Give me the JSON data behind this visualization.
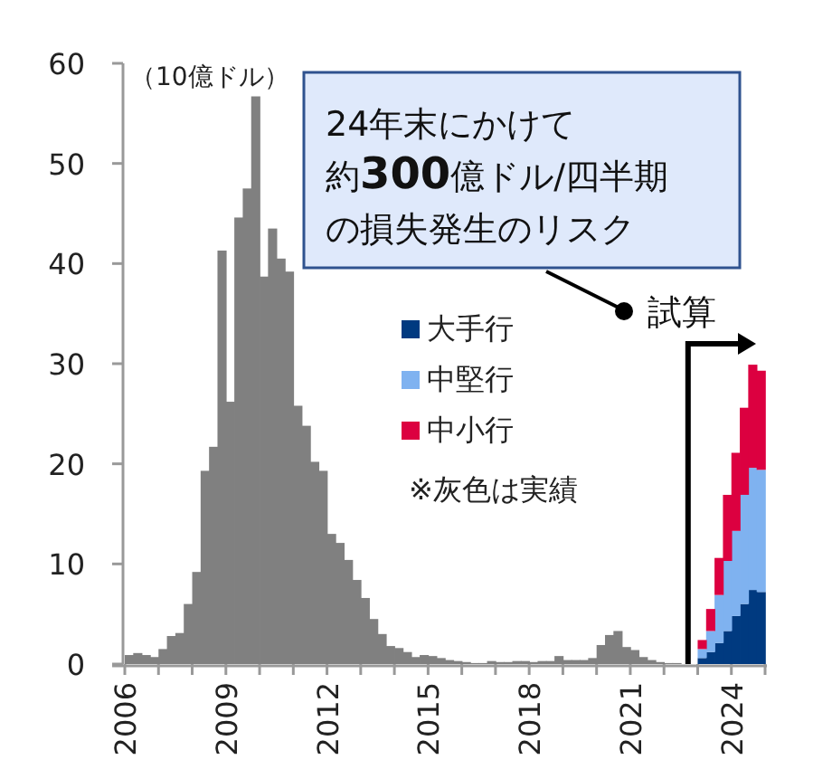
{
  "chart_data": {
    "type": "bar",
    "stacked": true,
    "ylabel": "（10億ドル）",
    "xlim": [
      2006,
      2025
    ],
    "xticks": [
      {
        "value": 2006,
        "label": "2006"
      },
      {
        "value": 2007,
        "label": null
      },
      {
        "value": 2008,
        "label": null
      },
      {
        "value": 2009,
        "label": "2009"
      },
      {
        "value": 2010,
        "label": null
      },
      {
        "value": 2011,
        "label": null
      },
      {
        "value": 2012,
        "label": "2012"
      },
      {
        "value": 2013,
        "label": null
      },
      {
        "value": 2014,
        "label": null
      },
      {
        "value": 2015,
        "label": "2015"
      },
      {
        "value": 2016,
        "label": null
      },
      {
        "value": 2017,
        "label": null
      },
      {
        "value": 2018,
        "label": "2018"
      },
      {
        "value": 2019,
        "label": null
      },
      {
        "value": 2020,
        "label": null
      },
      {
        "value": 2021,
        "label": "2021"
      },
      {
        "value": 2022,
        "label": null
      },
      {
        "value": 2023,
        "label": null
      },
      {
        "value": 2024,
        "label": "2024"
      },
      {
        "value": 2025,
        "label": null
      }
    ],
    "ylim": [
      0,
      60
    ],
    "yticks": [
      0,
      10,
      20,
      30,
      40,
      50,
      60
    ],
    "legend": "center",
    "x": [
      2006.125,
      2006.375,
      2006.625,
      2006.875,
      2007.125,
      2007.375,
      2007.625,
      2007.875,
      2008.125,
      2008.375,
      2008.625,
      2008.875,
      2009.125,
      2009.375,
      2009.625,
      2009.875,
      2010.125,
      2010.375,
      2010.625,
      2010.875,
      2011.125,
      2011.375,
      2011.625,
      2011.875,
      2012.125,
      2012.375,
      2012.625,
      2012.875,
      2013.125,
      2013.375,
      2013.625,
      2013.875,
      2014.125,
      2014.375,
      2014.625,
      2014.875,
      2015.125,
      2015.375,
      2015.625,
      2015.875,
      2016.125,
      2016.375,
      2016.625,
      2016.875,
      2017.125,
      2017.375,
      2017.625,
      2017.875,
      2018.125,
      2018.375,
      2018.625,
      2018.875,
      2019.125,
      2019.375,
      2019.625,
      2019.875,
      2020.125,
      2020.375,
      2020.625,
      2020.875,
      2021.125,
      2021.375,
      2021.625,
      2021.875,
      2022.125,
      2022.375,
      2022.625,
      2022.875,
      2023.125,
      2023.375,
      2023.625,
      2023.875,
      2024.125,
      2024.375,
      2024.625,
      2024.875
    ],
    "series": [
      {
        "color": "#808080",
        "values": [
          0.9,
          1.1,
          0.9,
          0.7,
          1.5,
          2.8,
          3.1,
          6.0,
          9.2,
          19.3,
          21.7,
          41.3,
          26.2,
          44.6,
          47.5,
          56.7,
          38.7,
          43.5,
          40.5,
          39.2,
          25.8,
          23.8,
          20.2,
          19.3,
          13.0,
          12.1,
          10.4,
          8.4,
          6.6,
          4.5,
          3.0,
          1.8,
          1.6,
          1.2,
          0.7,
          0.9,
          0.8,
          0.6,
          0.4,
          0.3,
          0.2,
          0.1,
          0.1,
          0.3,
          0.2,
          0.2,
          0.3,
          0.3,
          0.2,
          0.3,
          0.3,
          0.8,
          0.4,
          0.4,
          0.4,
          0.6,
          1.9,
          2.9,
          3.3,
          1.7,
          1.4,
          0.7,
          0.4,
          0.2,
          0.1,
          0.1,
          null,
          null,
          null,
          null,
          null,
          null,
          null,
          null,
          null,
          null
        ]
      },
      {
        "name": "大手行",
        "color": "#003a80",
        "values": [
          null,
          null,
          null,
          null,
          null,
          null,
          null,
          null,
          null,
          null,
          null,
          null,
          null,
          null,
          null,
          null,
          null,
          null,
          null,
          null,
          null,
          null,
          null,
          null,
          null,
          null,
          null,
          null,
          null,
          null,
          null,
          null,
          null,
          null,
          null,
          null,
          null,
          null,
          null,
          null,
          null,
          null,
          null,
          null,
          null,
          null,
          null,
          null,
          null,
          null,
          null,
          null,
          null,
          null,
          null,
          null,
          null,
          null,
          null,
          null,
          null,
          null,
          null,
          null,
          null,
          null,
          null,
          null,
          0.6,
          1.2,
          2.1,
          3.3,
          4.8,
          6.0,
          7.4,
          7.2
        ]
      },
      {
        "name": "中堅行",
        "color": "#7fb2f0",
        "values": [
          null,
          null,
          null,
          null,
          null,
          null,
          null,
          null,
          null,
          null,
          null,
          null,
          null,
          null,
          null,
          null,
          null,
          null,
          null,
          null,
          null,
          null,
          null,
          null,
          null,
          null,
          null,
          null,
          null,
          null,
          null,
          null,
          null,
          null,
          null,
          null,
          null,
          null,
          null,
          null,
          null,
          null,
          null,
          null,
          null,
          null,
          null,
          null,
          null,
          null,
          null,
          null,
          null,
          null,
          null,
          null,
          null,
          null,
          null,
          null,
          null,
          null,
          null,
          null,
          null,
          null,
          null,
          null,
          0.9,
          2.1,
          4.8,
          7.0,
          8.5,
          10.9,
          12.2,
          12.2
        ]
      },
      {
        "name": "中小行",
        "color": "#dc0040",
        "values": [
          null,
          null,
          null,
          null,
          null,
          null,
          null,
          null,
          null,
          null,
          null,
          null,
          null,
          null,
          null,
          null,
          null,
          null,
          null,
          null,
          null,
          null,
          null,
          null,
          null,
          null,
          null,
          null,
          null,
          null,
          null,
          null,
          null,
          null,
          null,
          null,
          null,
          null,
          null,
          null,
          null,
          null,
          null,
          null,
          null,
          null,
          null,
          null,
          null,
          null,
          null,
          null,
          null,
          null,
          null,
          null,
          null,
          null,
          null,
          null,
          null,
          null,
          null,
          null,
          null,
          null,
          null,
          null,
          0.9,
          2.2,
          3.7,
          6.6,
          7.8,
          8.7,
          10.3,
          9.9
        ]
      }
    ],
    "annotations": [
      "24年末にかけて",
      "約300億ドル/四半期",
      "の損失発生のリスク",
      "試算",
      "※灰色は実績"
    ]
  }
}
